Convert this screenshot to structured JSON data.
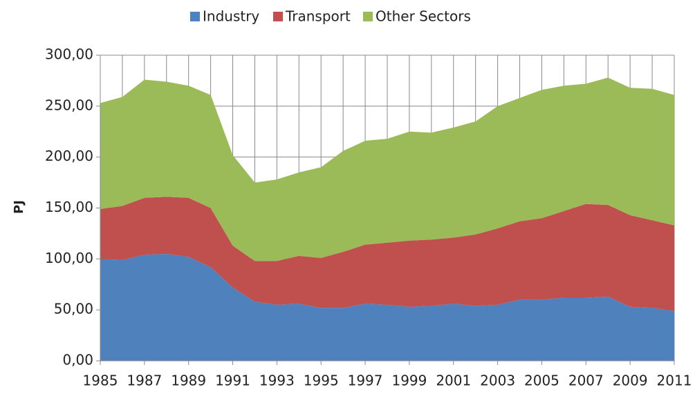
{
  "chart_data": {
    "type": "stacked_area",
    "ylabel": "PJ",
    "x": [
      1985,
      1986,
      1987,
      1988,
      1989,
      1990,
      1991,
      1992,
      1993,
      1994,
      1995,
      1996,
      1997,
      1998,
      1999,
      2000,
      2001,
      2002,
      2003,
      2004,
      2005,
      2006,
      2007,
      2008,
      2009,
      2010,
      2011
    ],
    "series": [
      {
        "name": "Industry",
        "color": "#4f81bd",
        "values": [
          100,
          99,
          104,
          105,
          102,
          92,
          72,
          58,
          55,
          56,
          52,
          52,
          56,
          55,
          53,
          54,
          56,
          54,
          55,
          60,
          60,
          62,
          62,
          63,
          53,
          52,
          49
        ]
      },
      {
        "name": "Transport",
        "color": "#c0504d",
        "values": [
          49,
          53,
          56,
          56,
          58,
          58,
          41,
          40,
          43,
          47,
          49,
          55,
          58,
          61,
          65,
          65,
          65,
          70,
          75,
          77,
          80,
          85,
          92,
          90,
          90,
          86,
          84
        ]
      },
      {
        "name": "Other Sectors",
        "color": "#9bbb59",
        "values": [
          104,
          107,
          116,
          113,
          110,
          111,
          89,
          77,
          80,
          82,
          89,
          99,
          102,
          102,
          107,
          105,
          108,
          111,
          120,
          121,
          126,
          123,
          118,
          125,
          125,
          129,
          128
        ]
      }
    ],
    "xlim": [
      1985,
      2011
    ],
    "xticks": [
      1985,
      1987,
      1989,
      1991,
      1993,
      1995,
      1997,
      1999,
      2001,
      2003,
      2005,
      2007,
      2009,
      2011
    ],
    "ylim": [
      0,
      300
    ],
    "yticks": [
      {
        "value": 0,
        "label": "0,00"
      },
      {
        "value": 50,
        "label": "50,00"
      },
      {
        "value": 100,
        "label": "100,00"
      },
      {
        "value": 150,
        "label": "150,00"
      },
      {
        "value": 200,
        "label": "200,00"
      },
      {
        "value": 250,
        "label": "250,00"
      },
      {
        "value": 300,
        "label": "300,00"
      }
    ],
    "grid": true,
    "legend": "top"
  }
}
